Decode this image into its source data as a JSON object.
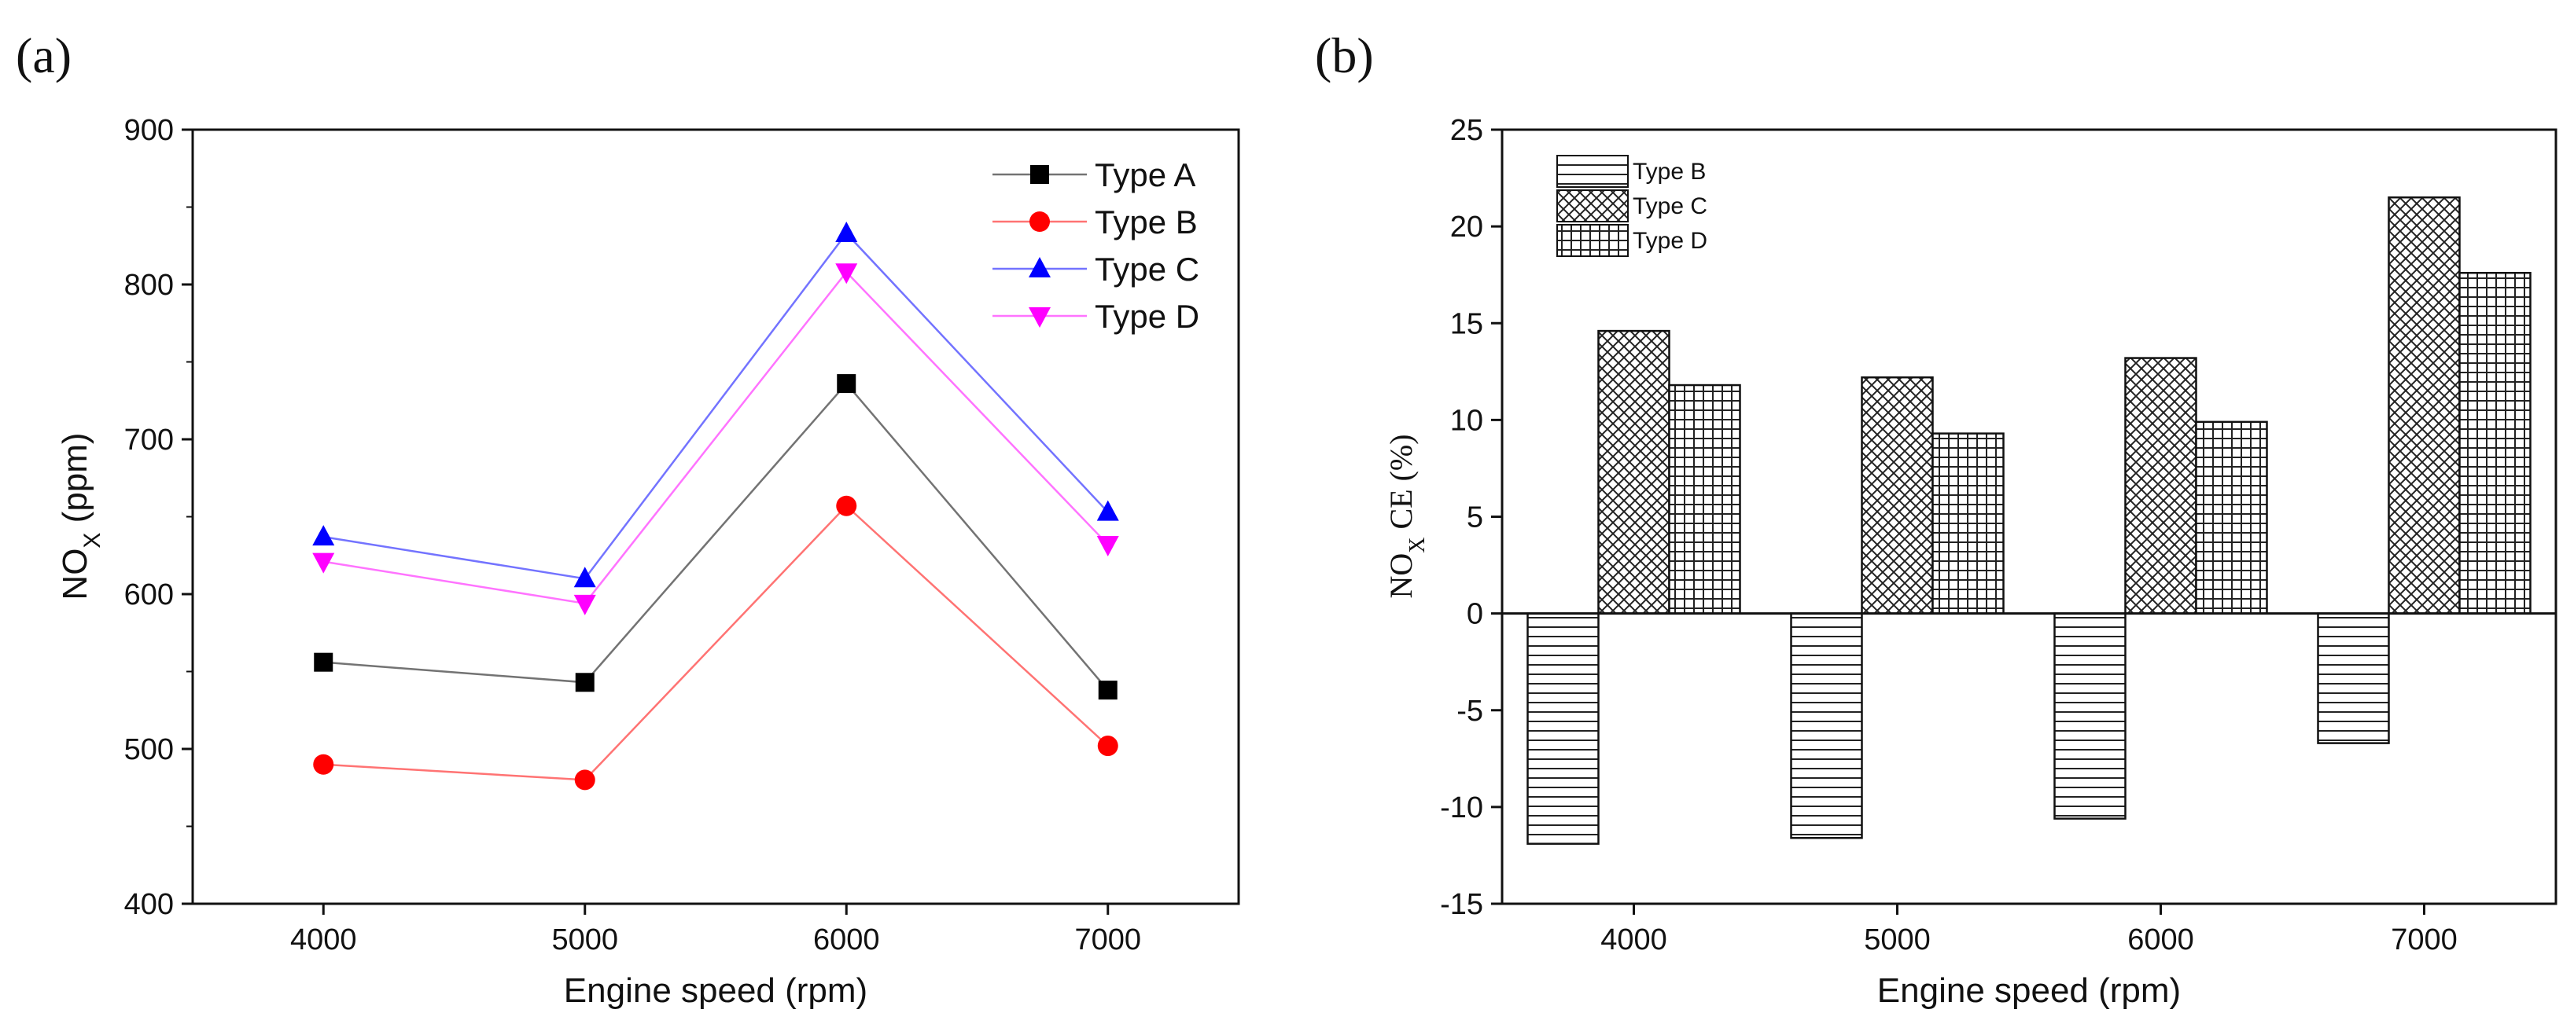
{
  "chart_data": [
    {
      "type": "line",
      "panel_label": "(a)",
      "xlabel": "Engine speed (rpm)",
      "ylabel_main": "NO",
      "ylabel_sub": "X",
      "ylabel_unit": " (ppm)",
      "x": [
        4000,
        5000,
        6000,
        7000
      ],
      "x_tick_labels": [
        "4000",
        "5000",
        "6000",
        "7000"
      ],
      "xlim": [
        3500,
        7500
      ],
      "ylim": [
        400,
        900
      ],
      "y_ticks": [
        400,
        500,
        600,
        700,
        800,
        900
      ],
      "y_tick_labels": [
        "400",
        "500",
        "600",
        "700",
        "800",
        "900"
      ],
      "legend_position": "top-right",
      "series": [
        {
          "name": "Type A",
          "values": [
            556,
            543,
            736,
            538
          ],
          "color": "#000000",
          "marker": "square"
        },
        {
          "name": "Type B",
          "values": [
            490,
            480,
            657,
            502
          ],
          "color": "#ff0000",
          "marker": "circle"
        },
        {
          "name": "Type C",
          "values": [
            637,
            610,
            833,
            653
          ],
          "color": "#0000ff",
          "marker": "triangle-up"
        },
        {
          "name": "Type D",
          "values": [
            621,
            594,
            808,
            632
          ],
          "color": "#ff00ff",
          "marker": "triangle-down"
        }
      ]
    },
    {
      "type": "bar",
      "panel_label": "(b)",
      "xlabel": "Engine speed (rpm)",
      "ylabel_main": "NO",
      "ylabel_sub": "X",
      "ylabel_unit": " CE (%)",
      "categories": [
        "4000",
        "5000",
        "6000",
        "7000"
      ],
      "ylim": [
        -15,
        25
      ],
      "y_ticks": [
        -15,
        -10,
        -5,
        0,
        5,
        10,
        15,
        20,
        25
      ],
      "y_tick_labels": [
        "-15",
        "-10",
        "-5",
        "0",
        "5",
        "10",
        "15",
        "20",
        "25"
      ],
      "legend_position": "top-left",
      "series": [
        {
          "name": "Type B",
          "values": [
            -11.9,
            -11.6,
            -10.6,
            -6.7
          ],
          "pattern": "horizontal-lines"
        },
        {
          "name": "Type C",
          "values": [
            14.6,
            12.2,
            13.2,
            21.5
          ],
          "pattern": "crosshatch"
        },
        {
          "name": "Type D",
          "values": [
            11.8,
            9.3,
            9.9,
            17.6
          ],
          "pattern": "grid"
        }
      ]
    }
  ]
}
